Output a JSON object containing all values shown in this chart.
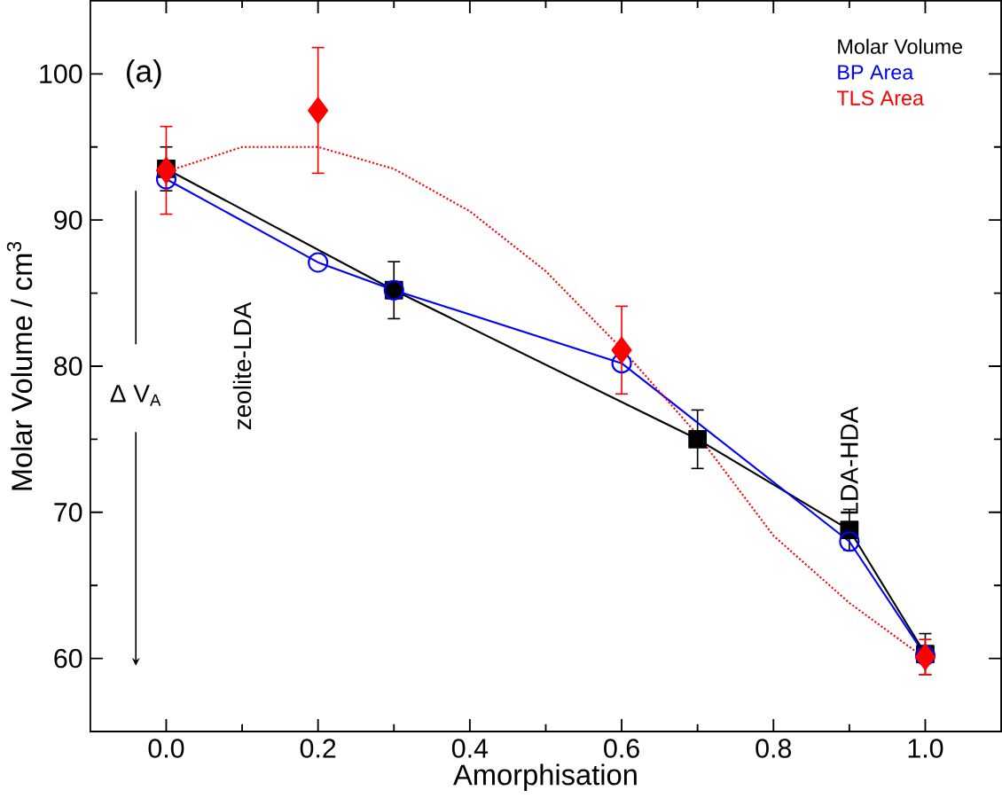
{
  "chart_data": {
    "type": "line",
    "xlabel": "Amorphisation",
    "ylabel": "Molar Volume / cm$^{3}$",
    "xlim": [
      -0.1,
      1.1
    ],
    "ylim": [
      55,
      105
    ],
    "xticks": [
      {
        "value": 0,
        "label": "0.0"
      },
      {
        "value": 0.2,
        "label": "0.2"
      },
      {
        "value": 0.4,
        "label": "0.4"
      },
      {
        "value": 0.6,
        "label": "0.6"
      },
      {
        "value": 0.8,
        "label": "0.8"
      },
      {
        "value": 1.0,
        "label": "1.0"
      }
    ],
    "yticks": [
      60,
      70,
      80,
      90,
      100
    ],
    "legend": "top right",
    "grid": false,
    "annotations": [
      "(a)",
      "zeolite-LDA",
      "LDA-HDA",
      "Δ V$_{A}$"
    ],
    "series": [
      {
        "name": "Molar Volume",
        "color": "#000000",
        "marker": "square",
        "line_style": "solid",
        "x": [
          0,
          0.3,
          0.7,
          0.9,
          1.0
        ],
        "values": [
          93.5,
          85.2,
          75.0,
          68.8,
          60.3
        ],
        "errors": [
          1.5,
          1.95,
          2.0,
          1.4,
          1.4
        ]
      },
      {
        "name": "BP Area",
        "color": "#0000ff",
        "marker": "circle",
        "line_style": "solid",
        "x": [
          0,
          0.2,
          0.3,
          0.6,
          0.9,
          1.0
        ],
        "values": [
          92.8,
          87.1,
          85.2,
          80.2,
          68.0,
          60.2
        ]
      },
      {
        "type": "line",
        "color": "#ff0000",
        "marker": "none",
        "line_style": "dotted",
        "x": [
          0,
          0.1,
          0.2,
          0.3,
          0.4,
          0.5,
          0.6,
          0.7,
          0.8,
          0.9,
          1.0
        ],
        "values": [
          93.3,
          95.0,
          95.0,
          93.5,
          90.6,
          86.5,
          81.2,
          75.3,
          68.4,
          63.8,
          60.0
        ]
      },
      {
        "name": "TLS Area",
        "type": "scatter",
        "color": "#ff0000",
        "marker": "diamond",
        "x": [
          0,
          0.2,
          0.6,
          1.0
        ],
        "values": [
          93.4,
          97.5,
          81.1,
          60.1
        ],
        "errors": [
          3.0,
          4.3,
          3.0,
          1.2
        ]
      }
    ]
  }
}
